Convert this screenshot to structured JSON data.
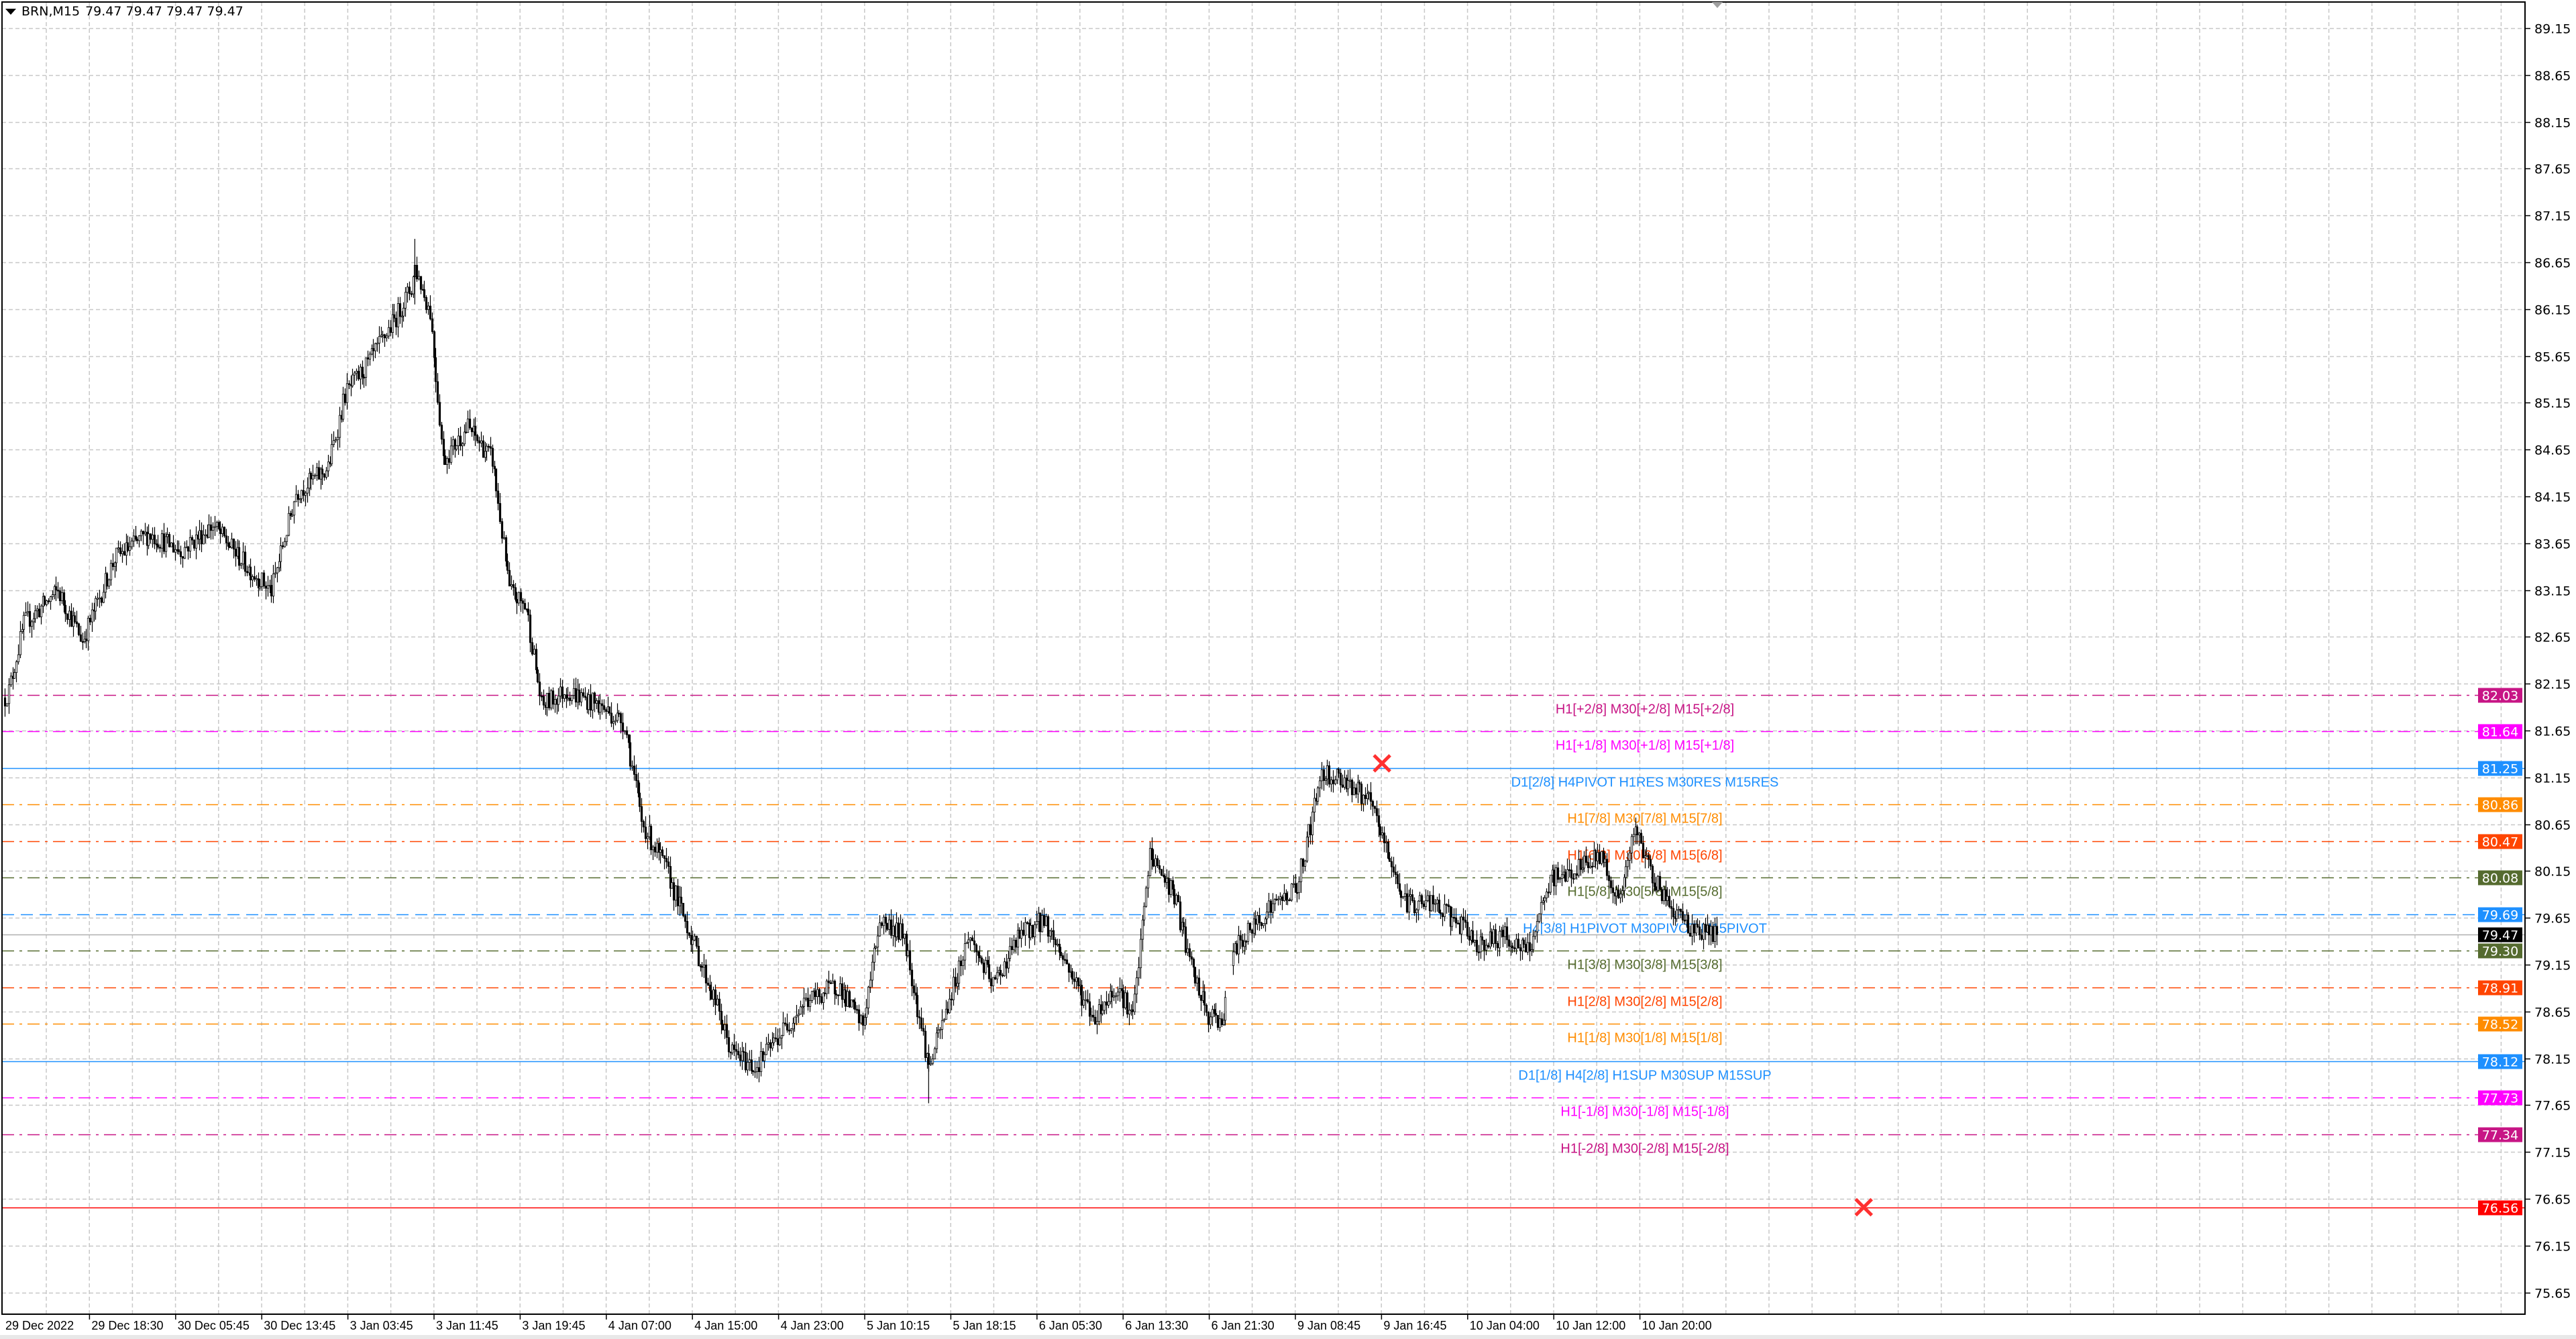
{
  "header": {
    "symbol": "BRN,M15",
    "ohlc": "79.47 79.47 79.47 79.47"
  },
  "chart_data": {
    "type": "candlestick",
    "symbol": "BRN",
    "timeframe": "M15",
    "y_ticks": [
      "89.15",
      "88.65",
      "88.15",
      "87.65",
      "87.15",
      "86.65",
      "86.15",
      "85.65",
      "85.15",
      "84.65",
      "84.15",
      "83.65",
      "83.15",
      "82.65",
      "82.15",
      "81.65",
      "81.15",
      "80.65",
      "80.15",
      "79.65",
      "79.15",
      "78.65",
      "78.15",
      "77.65",
      "77.15",
      "76.65",
      "76.15",
      "75.65"
    ],
    "ylim": [
      75.35,
      89.45
    ],
    "x_ticks": [
      "29 Dec 2022",
      "29 Dec 18:30",
      "30 Dec 05:45",
      "30 Dec 13:45",
      "3 Jan 03:45",
      "3 Jan 11:45",
      "3 Jan 19:45",
      "4 Jan 07:00",
      "4 Jan 15:00",
      "4 Jan 23:00",
      "5 Jan 10:15",
      "5 Jan 18:15",
      "6 Jan 05:30",
      "6 Jan 13:30",
      "6 Jan 21:30",
      "9 Jan 08:45",
      "9 Jan 16:45",
      "10 Jan 04:00",
      "10 Jan 12:00",
      "10 Jan 20:00"
    ],
    "grid": true,
    "price_path_approx": [
      [
        0,
        82.0
      ],
      [
        2,
        82.08
      ],
      [
        10,
        82.79
      ],
      [
        28,
        83.14
      ],
      [
        41,
        82.61
      ],
      [
        58,
        83.49
      ],
      [
        76,
        83.75
      ],
      [
        93,
        83.57
      ],
      [
        110,
        83.84
      ],
      [
        128,
        83.4
      ],
      [
        141,
        83.14
      ],
      [
        154,
        84.19
      ],
      [
        171,
        84.45
      ],
      [
        180,
        85.24
      ],
      [
        193,
        85.59
      ],
      [
        206,
        86.03
      ],
      [
        215,
        86.38
      ],
      [
        217,
        86.6
      ],
      [
        225,
        86.12
      ],
      [
        232,
        84.54
      ],
      [
        245,
        84.89
      ],
      [
        258,
        84.54
      ],
      [
        267,
        83.14
      ],
      [
        276,
        82.96
      ],
      [
        284,
        81.91
      ],
      [
        297,
        82.08
      ],
      [
        315,
        81.91
      ],
      [
        328,
        81.73
      ],
      [
        337,
        80.68
      ],
      [
        350,
        80.16
      ],
      [
        363,
        79.46
      ],
      [
        376,
        78.75
      ],
      [
        384,
        78.23
      ],
      [
        397,
        78.05
      ],
      [
        410,
        78.4
      ],
      [
        423,
        78.75
      ],
      [
        441,
        78.93
      ],
      [
        454,
        78.49
      ],
      [
        463,
        79.63
      ],
      [
        476,
        79.46
      ],
      [
        489,
        78.05
      ],
      [
        497,
        78.58
      ],
      [
        510,
        79.46
      ],
      [
        523,
        78.93
      ],
      [
        537,
        79.46
      ],
      [
        550,
        79.63
      ],
      [
        563,
        79.11
      ],
      [
        576,
        78.58
      ],
      [
        589,
        78.93
      ],
      [
        597,
        78.58
      ],
      [
        606,
        80.33
      ],
      [
        619,
        79.89
      ],
      [
        628,
        79.11
      ],
      [
        637,
        78.58
      ],
      [
        645,
        78.58
      ],
      [
        650,
        79.28
      ],
      [
        667,
        79.72
      ],
      [
        684,
        79.98
      ],
      [
        697,
        81.21
      ],
      [
        710,
        81.12
      ],
      [
        723,
        80.86
      ],
      [
        732,
        80.33
      ],
      [
        741,
        79.81
      ],
      [
        754,
        79.81
      ],
      [
        767,
        79.63
      ],
      [
        780,
        79.37
      ],
      [
        793,
        79.46
      ],
      [
        806,
        79.28
      ],
      [
        819,
        80.07
      ],
      [
        832,
        80.16
      ],
      [
        845,
        80.33
      ],
      [
        854,
        79.81
      ],
      [
        863,
        80.59
      ],
      [
        871,
        80.16
      ],
      [
        880,
        79.81
      ],
      [
        893,
        79.54
      ],
      [
        906,
        79.47
      ]
    ],
    "high": 86.9,
    "low": 77.67,
    "last_price": "79.47",
    "markers": [
      {
        "type": "cross",
        "bar": 729,
        "price": 81.3,
        "color": "#FF3030"
      },
      {
        "type": "cross",
        "bar": 984,
        "price": 76.56,
        "color": "#FF3030"
      }
    ],
    "levels": [
      {
        "price": "82.03",
        "color": "#C71585",
        "style": "dashdot",
        "label": "H1[+2/8] M30[+2/8] M15[+2/8]"
      },
      {
        "price": "81.64",
        "color": "#FF00FF",
        "style": "dashdot",
        "label": "H1[+1/8] M30[+1/8] M15[+1/8]"
      },
      {
        "price": "81.25",
        "color": "#1E90FF",
        "style": "solid",
        "label": "D1[2/8] H4PIVOT H1RES M30RES M15RES"
      },
      {
        "price": "80.86",
        "color": "#FF8C00",
        "style": "dashdot",
        "label": "H1[7/8] M30[7/8] M15[7/8]"
      },
      {
        "price": "80.47",
        "color": "#FF4500",
        "style": "dashdot",
        "label": "H1[6/8] M30[6/8] M15[6/8]"
      },
      {
        "price": "80.08",
        "color": "#556B2F",
        "style": "dashdot",
        "label": "H1[5/8] M30[5/8] M15[5/8]"
      },
      {
        "price": "79.69",
        "color": "#1E90FF",
        "style": "dashed",
        "label": "H4[3/8] H1PIVOT M30PIVOT M15PIVOT"
      },
      {
        "price": "79.47",
        "color": "#000000",
        "style": "bid",
        "label": ""
      },
      {
        "price": "79.30",
        "color": "#556B2F",
        "style": "dashdot",
        "label": "H1[3/8] M30[3/8] M15[3/8]"
      },
      {
        "price": "78.91",
        "color": "#FF4500",
        "style": "dashdot",
        "label": "H1[2/8] M30[2/8] M15[2/8]"
      },
      {
        "price": "78.52",
        "color": "#FF8C00",
        "style": "dashdot",
        "label": "H1[1/8] M30[1/8] M15[1/8]"
      },
      {
        "price": "78.12",
        "color": "#1E90FF",
        "style": "solid",
        "label": "D1[1/8] H4[2/8] H1SUP M30SUP M15SUP"
      },
      {
        "price": "77.73",
        "color": "#FF00FF",
        "style": "dashdot",
        "label": "H1[-1/8] M30[-1/8] M15[-1/8]"
      },
      {
        "price": "77.34",
        "color": "#C71585",
        "style": "dashdot",
        "label": "H1[-2/8] M30[-2/8] M15[-2/8]"
      },
      {
        "price": "76.56",
        "color": "#FF0000",
        "style": "solid",
        "label": ""
      }
    ]
  }
}
